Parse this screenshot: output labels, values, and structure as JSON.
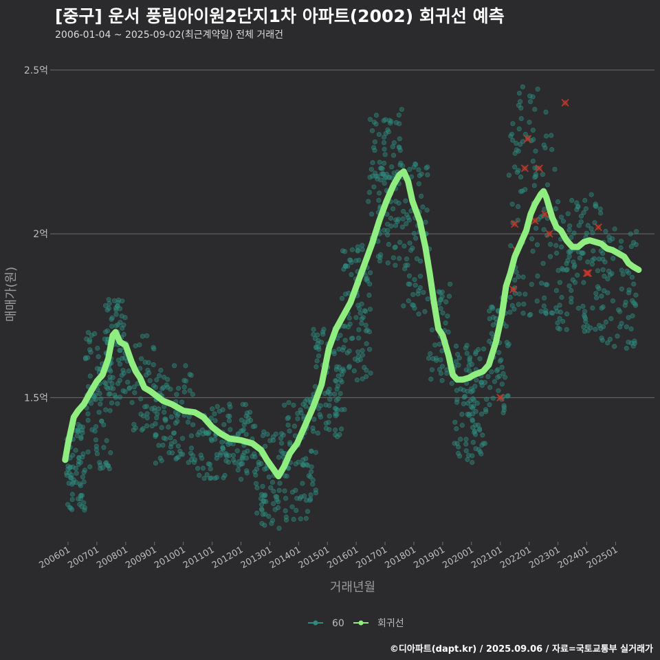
{
  "title": "[중구] 운서 풍림아이원2단지1차 아파트(2002) 회귀선 예측",
  "subtitle": "2006-01-04 ~ 2025-09-02(최근계약일) 전체 거래건",
  "caption": "©디아파트(dapt.kr) / 2025.09.06 / 자료=국토교통부 실거래가",
  "colors": {
    "background": "#2b2b2d",
    "points": "#2e8b7e",
    "regression": "#90ee80",
    "outliers": "#c0392b",
    "grid": "#6e6e6e"
  },
  "chart_data": {
    "type": "scatter",
    "xlabel": "거래년월",
    "ylabel": "매매가(원)",
    "ylim": [
      1.06,
      2.55
    ],
    "xlim": [
      2005.5,
      2026.35
    ],
    "y_ticks": [
      {
        "value": 1.5,
        "label": "1.5억"
      },
      {
        "value": 2.0,
        "label": "2억"
      },
      {
        "value": 2.5,
        "label": "2.5억"
      }
    ],
    "x_ticks": [
      {
        "value": 2006,
        "label": "200601"
      },
      {
        "value": 2007,
        "label": "200701"
      },
      {
        "value": 2008,
        "label": "200801"
      },
      {
        "value": 2009,
        "label": "200901"
      },
      {
        "value": 2010,
        "label": "201001"
      },
      {
        "value": 2011,
        "label": "201101"
      },
      {
        "value": 2012,
        "label": "201201"
      },
      {
        "value": 2013,
        "label": "201301"
      },
      {
        "value": 2014,
        "label": "201401"
      },
      {
        "value": 2015,
        "label": "201501"
      },
      {
        "value": 2016,
        "label": "201601"
      },
      {
        "value": 2017,
        "label": "201701"
      },
      {
        "value": 2018,
        "label": "201801"
      },
      {
        "value": 2019,
        "label": "201901"
      },
      {
        "value": 2020,
        "label": "202001"
      },
      {
        "value": 2021,
        "label": "202101"
      },
      {
        "value": 2022,
        "label": "202201"
      },
      {
        "value": 2023,
        "label": "202301"
      },
      {
        "value": 2024,
        "label": "202401"
      },
      {
        "value": 2025,
        "label": "202501"
      }
    ],
    "legend": [
      {
        "name": "60",
        "color": "#2e8b7e"
      },
      {
        "name": "회귀선",
        "color": "#90ee80"
      }
    ],
    "legend_position": "bottom",
    "regression": [
      [
        2005.9,
        1.31
      ],
      [
        2006.0,
        1.36
      ],
      [
        2006.1,
        1.4
      ],
      [
        2006.2,
        1.44
      ],
      [
        2006.35,
        1.46
      ],
      [
        2006.55,
        1.48
      ],
      [
        2006.8,
        1.52
      ],
      [
        2007.0,
        1.55
      ],
      [
        2007.2,
        1.57
      ],
      [
        2007.4,
        1.62
      ],
      [
        2007.55,
        1.69
      ],
      [
        2007.65,
        1.7
      ],
      [
        2007.8,
        1.67
      ],
      [
        2008.0,
        1.66
      ],
      [
        2008.2,
        1.61
      ],
      [
        2008.35,
        1.58
      ],
      [
        2008.5,
        1.56
      ],
      [
        2008.65,
        1.53
      ],
      [
        2008.85,
        1.52
      ],
      [
        2009.0,
        1.51
      ],
      [
        2009.3,
        1.49
      ],
      [
        2009.6,
        1.48
      ],
      [
        2010.0,
        1.46
      ],
      [
        2010.4,
        1.455
      ],
      [
        2010.7,
        1.44
      ],
      [
        2011.0,
        1.41
      ],
      [
        2011.3,
        1.39
      ],
      [
        2011.6,
        1.375
      ],
      [
        2012.0,
        1.37
      ],
      [
        2012.4,
        1.36
      ],
      [
        2012.7,
        1.34
      ],
      [
        2012.9,
        1.31
      ],
      [
        2013.1,
        1.285
      ],
      [
        2013.3,
        1.26
      ],
      [
        2013.5,
        1.29
      ],
      [
        2013.7,
        1.33
      ],
      [
        2013.95,
        1.36
      ],
      [
        2014.2,
        1.41
      ],
      [
        2014.5,
        1.47
      ],
      [
        2014.8,
        1.54
      ],
      [
        2015.05,
        1.65
      ],
      [
        2015.3,
        1.71
      ],
      [
        2015.55,
        1.75
      ],
      [
        2015.8,
        1.79
      ],
      [
        2016.05,
        1.85
      ],
      [
        2016.3,
        1.91
      ],
      [
        2016.55,
        1.97
      ],
      [
        2016.8,
        2.04
      ],
      [
        2017.05,
        2.1
      ],
      [
        2017.3,
        2.15
      ],
      [
        2017.5,
        2.18
      ],
      [
        2017.65,
        2.19
      ],
      [
        2017.8,
        2.16
      ],
      [
        2017.95,
        2.1
      ],
      [
        2018.2,
        2.04
      ],
      [
        2018.4,
        1.96
      ],
      [
        2018.55,
        1.88
      ],
      [
        2018.7,
        1.79
      ],
      [
        2018.85,
        1.71
      ],
      [
        2019.0,
        1.69
      ],
      [
        2019.2,
        1.63
      ],
      [
        2019.35,
        1.57
      ],
      [
        2019.5,
        1.555
      ],
      [
        2019.7,
        1.555
      ],
      [
        2019.9,
        1.56
      ],
      [
        2020.1,
        1.57
      ],
      [
        2020.4,
        1.58
      ],
      [
        2020.6,
        1.6
      ],
      [
        2020.85,
        1.67
      ],
      [
        2021.05,
        1.75
      ],
      [
        2021.2,
        1.84
      ],
      [
        2021.35,
        1.88
      ],
      [
        2021.5,
        1.93
      ],
      [
        2021.7,
        1.97
      ],
      [
        2021.9,
        2.01
      ],
      [
        2022.05,
        2.06
      ],
      [
        2022.2,
        2.09
      ],
      [
        2022.4,
        2.12
      ],
      [
        2022.5,
        2.13
      ],
      [
        2022.6,
        2.11
      ],
      [
        2022.8,
        2.05
      ],
      [
        2022.95,
        2.02
      ],
      [
        2023.1,
        2.01
      ],
      [
        2023.3,
        1.98
      ],
      [
        2023.5,
        1.96
      ],
      [
        2023.7,
        1.96
      ],
      [
        2023.9,
        1.975
      ],
      [
        2024.1,
        1.98
      ],
      [
        2024.3,
        1.975
      ],
      [
        2024.5,
        1.97
      ],
      [
        2024.7,
        1.955
      ],
      [
        2024.9,
        1.95
      ],
      [
        2025.1,
        1.94
      ],
      [
        2025.3,
        1.93
      ],
      [
        2025.45,
        1.91
      ],
      [
        2025.6,
        1.9
      ],
      [
        2025.8,
        1.89
      ]
    ],
    "outliers": [
      [
        2021.0,
        1.5
      ],
      [
        2021.45,
        1.83
      ],
      [
        2021.5,
        2.03
      ],
      [
        2021.55,
        1.95
      ],
      [
        2021.85,
        2.2
      ],
      [
        2021.95,
        2.29
      ],
      [
        2022.2,
        2.04
      ],
      [
        2022.35,
        2.2
      ],
      [
        2022.55,
        2.06
      ],
      [
        2022.7,
        2.0
      ],
      [
        2023.25,
        2.4
      ],
      [
        2024.0,
        1.88
      ],
      [
        2024.05,
        1.88
      ],
      [
        2024.4,
        2.02
      ]
    ],
    "scatter_clusters": [
      {
        "x": [
          2005.9,
          2006.6
        ],
        "y": [
          1.15,
          1.42
        ],
        "n": 70
      },
      {
        "x": [
          2006.6,
          2007.5
        ],
        "y": [
          1.28,
          1.72
        ],
        "n": 80
      },
      {
        "x": [
          2007.3,
          2008.0
        ],
        "y": [
          1.48,
          1.8
        ],
        "n": 70
      },
      {
        "x": [
          2008.0,
          2009.0
        ],
        "y": [
          1.4,
          1.7
        ],
        "n": 45
      },
      {
        "x": [
          2009.0,
          2010.5
        ],
        "y": [
          1.3,
          1.6
        ],
        "n": 90
      },
      {
        "x": [
          2010.5,
          2012.5
        ],
        "y": [
          1.25,
          1.48
        ],
        "n": 120
      },
      {
        "x": [
          2012.5,
          2013.6
        ],
        "y": [
          1.1,
          1.4
        ],
        "n": 70
      },
      {
        "x": [
          2013.5,
          2014.6
        ],
        "y": [
          1.12,
          1.5
        ],
        "n": 80
      },
      {
        "x": [
          2014.5,
          2015.6
        ],
        "y": [
          1.38,
          1.72
        ],
        "n": 90
      },
      {
        "x": [
          2015.5,
          2016.5
        ],
        "y": [
          1.55,
          1.98
        ],
        "n": 90
      },
      {
        "x": [
          2016.4,
          2017.6
        ],
        "y": [
          1.9,
          2.38
        ],
        "n": 110
      },
      {
        "x": [
          2017.6,
          2018.6
        ],
        "y": [
          1.75,
          2.22
        ],
        "n": 70
      },
      {
        "x": [
          2018.5,
          2019.3
        ],
        "y": [
          1.55,
          1.85
        ],
        "n": 40
      },
      {
        "x": [
          2019.3,
          2020.5
        ],
        "y": [
          1.3,
          1.66
        ],
        "n": 100
      },
      {
        "x": [
          2020.5,
          2021.3
        ],
        "y": [
          1.45,
          1.82
        ],
        "n": 60
      },
      {
        "x": [
          2021.3,
          2022.9
        ],
        "y": [
          1.75,
          2.45
        ],
        "n": 110
      },
      {
        "x": [
          2022.9,
          2024.5
        ],
        "y": [
          1.7,
          2.12
        ],
        "n": 110
      },
      {
        "x": [
          2024.5,
          2025.8
        ],
        "y": [
          1.65,
          2.02
        ],
        "n": 70
      }
    ]
  }
}
